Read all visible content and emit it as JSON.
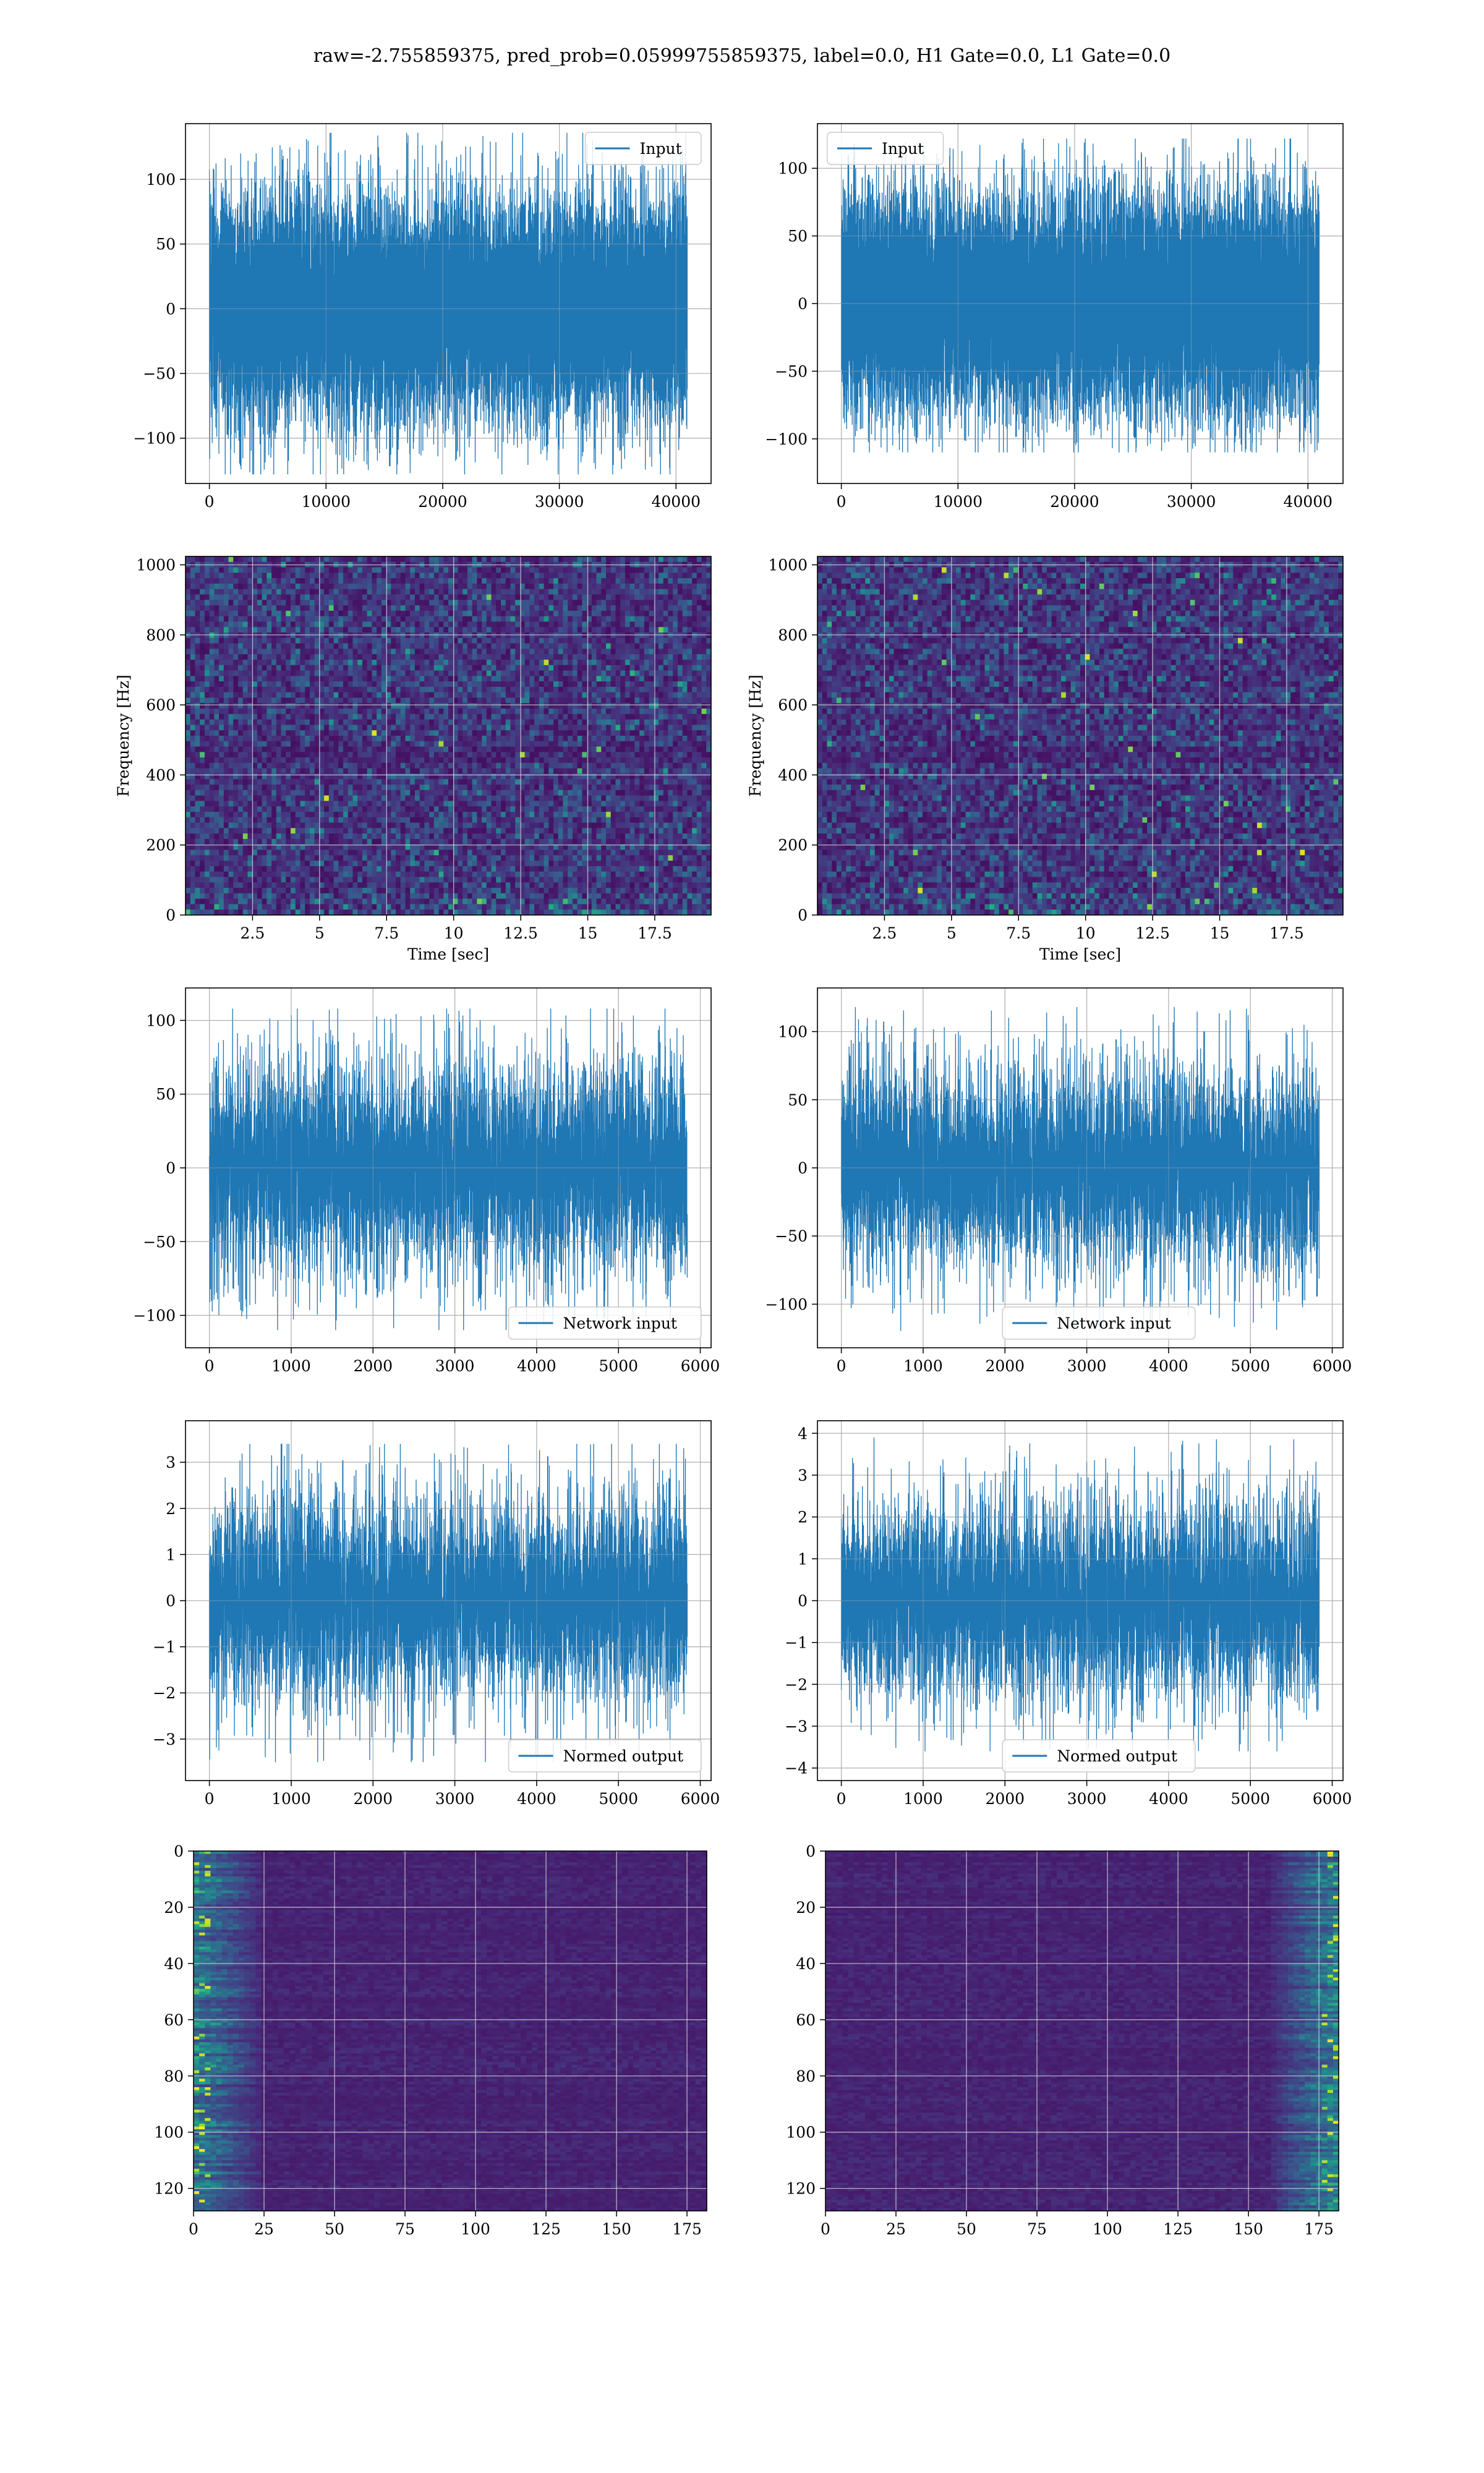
{
  "figure": {
    "title": "raw=-2.755859375, pred_prob=0.05999755859375, label=0.0, H1 Gate=0.0, L1 Gate=0.0"
  },
  "colors": {
    "line": "#1f77b4",
    "grid": "#b0b0b0",
    "viridis": [
      "#440154",
      "#472d7b",
      "#3b528b",
      "#2c728e",
      "#21918c",
      "#28ae80",
      "#5ec962",
      "#addc30",
      "#fde725"
    ]
  },
  "chart_data": [
    {
      "id": "h1-input",
      "type": "line",
      "legend": "Input",
      "legend_loc": "upper right",
      "n_points": 40960,
      "x_range": [
        0,
        40960
      ],
      "xlim": [
        -2048,
        43008
      ],
      "ylim": [
        -135,
        143
      ],
      "xticks": [
        0,
        10000,
        20000,
        30000,
        40000
      ],
      "yticks": [
        -100,
        -50,
        0,
        50,
        100
      ],
      "envelope": {
        "std": 27,
        "max": 136,
        "min": -128
      },
      "grid": true
    },
    {
      "id": "l1-input",
      "type": "line",
      "legend": "Input",
      "legend_loc": "upper left",
      "n_points": 40960,
      "x_range": [
        0,
        40960
      ],
      "xlim": [
        -2048,
        43008
      ],
      "ylim": [
        -133,
        133
      ],
      "xticks": [
        0,
        10000,
        20000,
        30000,
        40000
      ],
      "yticks": [
        -100,
        -50,
        0,
        50,
        100
      ],
      "envelope": {
        "std": 26,
        "max": 122,
        "min": -110
      },
      "grid": true
    },
    {
      "id": "h1-spectrogram",
      "type": "heatmap",
      "colormap": "viridis",
      "xlabel": "Time [sec]",
      "ylabel": "Frequency [Hz]",
      "xlim": [
        0,
        19.6
      ],
      "ylim": [
        0,
        1024
      ],
      "xticks": [
        2.5,
        5.0,
        7.5,
        10.0,
        12.5,
        15.0,
        17.5
      ],
      "yticks": [
        0,
        200,
        400,
        600,
        800,
        1000
      ],
      "grid": true
    },
    {
      "id": "l1-spectrogram",
      "type": "heatmap",
      "colormap": "viridis",
      "xlabel": "Time [sec]",
      "ylabel": "Frequency [Hz]",
      "xlim": [
        0,
        19.6
      ],
      "ylim": [
        0,
        1024
      ],
      "xticks": [
        2.5,
        5.0,
        7.5,
        10.0,
        12.5,
        15.0,
        17.5
      ],
      "yticks": [
        0,
        200,
        400,
        600,
        800,
        1000
      ],
      "grid": true
    },
    {
      "id": "h1-network-input",
      "type": "line",
      "legend": "Network input",
      "legend_loc": "lower right",
      "n_points": 5840,
      "x_range": [
        0,
        5840
      ],
      "xlim": [
        -292,
        6132
      ],
      "ylim": [
        -122,
        122
      ],
      "xticks": [
        0,
        1000,
        2000,
        3000,
        4000,
        5000,
        6000
      ],
      "yticks": [
        -100,
        -50,
        0,
        50,
        100
      ],
      "envelope": {
        "std": 24,
        "max": 108,
        "min": -110
      },
      "grid": true
    },
    {
      "id": "l1-network-input",
      "type": "line",
      "legend": "Network input",
      "legend_loc": "lower center",
      "n_points": 5840,
      "x_range": [
        0,
        5840
      ],
      "xlim": [
        -292,
        6132
      ],
      "ylim": [
        -132,
        132
      ],
      "xticks": [
        0,
        1000,
        2000,
        3000,
        4000,
        5000,
        6000
      ],
      "yticks": [
        -100,
        -50,
        0,
        50,
        100
      ],
      "envelope": {
        "std": 24,
        "max": 118,
        "min": -120
      },
      "grid": true
    },
    {
      "id": "h1-normed-output",
      "type": "line",
      "legend": "Normed output",
      "legend_loc": "lower right",
      "n_points": 5840,
      "x_range": [
        0,
        5840
      ],
      "xlim": [
        -292,
        6132
      ],
      "ylim": [
        -3.9,
        3.9
      ],
      "xticks": [
        0,
        1000,
        2000,
        3000,
        4000,
        5000,
        6000
      ],
      "yticks": [
        -3,
        -2,
        -1,
        0,
        1,
        2,
        3
      ],
      "envelope": {
        "std": 0.75,
        "max": 3.4,
        "min": -3.5
      },
      "grid": true
    },
    {
      "id": "l1-normed-output",
      "type": "line",
      "legend": "Normed output",
      "legend_loc": "lower center",
      "n_points": 5840,
      "x_range": [
        0,
        5840
      ],
      "xlim": [
        -292,
        6132
      ],
      "ylim": [
        -4.3,
        4.3
      ],
      "xticks": [
        0,
        1000,
        2000,
        3000,
        4000,
        5000,
        6000
      ],
      "yticks": [
        -4,
        -3,
        -2,
        -1,
        0,
        1,
        2,
        3,
        4
      ],
      "envelope": {
        "std": 0.8,
        "max": 3.9,
        "min": -3.6
      },
      "grid": true
    },
    {
      "id": "h1-feature-map",
      "type": "heatmap",
      "colormap": "viridis",
      "xlim": [
        0,
        182
      ],
      "ylim": [
        128,
        0
      ],
      "xticks": [
        0,
        25,
        50,
        75,
        100,
        125,
        150,
        175
      ],
      "yticks": [
        0,
        20,
        40,
        60,
        80,
        100,
        120
      ],
      "bright_side": "left",
      "grid": true
    },
    {
      "id": "l1-feature-map",
      "type": "heatmap",
      "colormap": "viridis",
      "xlim": [
        0,
        182
      ],
      "ylim": [
        128,
        0
      ],
      "xticks": [
        0,
        25,
        50,
        75,
        100,
        125,
        150,
        175
      ],
      "yticks": [
        0,
        20,
        40,
        60,
        80,
        100,
        120
      ],
      "bright_side": "right",
      "grid": true
    }
  ]
}
